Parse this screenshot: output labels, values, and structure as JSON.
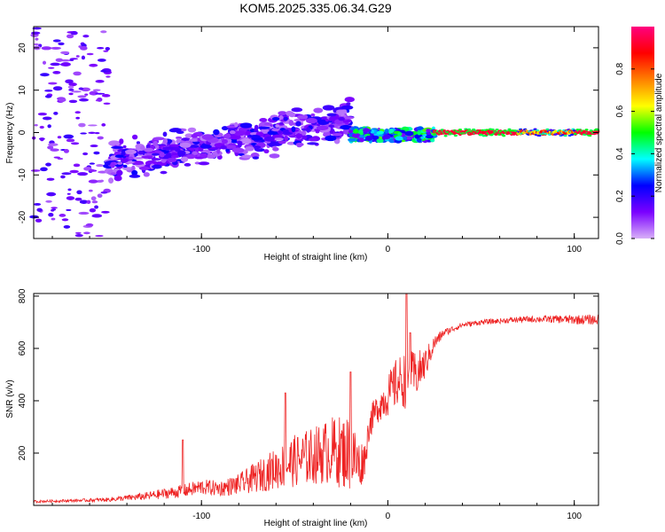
{
  "title": "KOM5.2025.335.06.34.G29",
  "colors": {
    "snr_line": "#ee2222",
    "axis": "#000000",
    "background": "#ffffff"
  },
  "chart_data": [
    {
      "type": "heatmap",
      "name": "spectrogram",
      "xlabel": "Height of straight line (km)",
      "ylabel": "Frequency (Hz)",
      "xlim": [
        -190,
        113
      ],
      "ylim": [
        -25,
        25
      ],
      "xticks": [
        -100,
        0,
        100
      ],
      "yticks": [
        -20,
        -10,
        0,
        10,
        20
      ],
      "colorbar": {
        "label": "Normalized spectral amplitude",
        "range": [
          0,
          1
        ],
        "ticks": [
          0.0,
          0.2,
          0.4,
          0.6,
          0.8
        ],
        "colormap": [
          "#d8b0f8",
          "#7a00ff",
          "#0000ff",
          "#00ffff",
          "#00ff00",
          "#ffff00",
          "#ff8000",
          "#ff0000",
          "#ff0080"
        ]
      },
      "features": [
        {
          "description": "scattered low-amplitude noise",
          "x_range": [
            -190,
            -150
          ],
          "freq_range": [
            -25,
            25
          ],
          "amplitude": 0.15
        },
        {
          "description": "rising diffuse band",
          "x_range": [
            -150,
            -20
          ],
          "freq_from": -7,
          "freq_to": 3,
          "amplitude": 0.25
        },
        {
          "description": "converging signal",
          "x_range": [
            -20,
            25
          ],
          "freq_range": [
            -2,
            1
          ],
          "amplitude": 0.5
        },
        {
          "description": "strong tone at 0 Hz",
          "x_range": [
            25,
            113
          ],
          "freq": 0,
          "amplitude": 0.95
        }
      ]
    },
    {
      "type": "line",
      "name": "snr",
      "xlabel": "Height of straight line (km)",
      "ylabel": "SNR (v/v)",
      "xlim": [
        -190,
        113
      ],
      "ylim": [
        0,
        810
      ],
      "xticks": [
        -100,
        0,
        100
      ],
      "yticks": [
        200,
        400,
        600,
        800
      ],
      "series": [
        {
          "name": "SNR",
          "envelope_x": [
            -190,
            -170,
            -150,
            -130,
            -110,
            -100,
            -90,
            -80,
            -70,
            -60,
            -50,
            -40,
            -30,
            -20,
            -15,
            -12,
            -10,
            -5,
            0,
            5,
            10,
            15,
            20,
            25,
            30,
            40,
            50,
            60,
            70,
            80,
            90,
            100,
            113
          ],
          "envelope_mean": [
            15,
            18,
            22,
            35,
            55,
            70,
            65,
            80,
            110,
            140,
            170,
            190,
            210,
            200,
            150,
            190,
            310,
            380,
            420,
            470,
            480,
            500,
            540,
            620,
            660,
            690,
            700,
            705,
            710,
            712,
            712,
            710,
            710
          ],
          "envelope_spread": [
            5,
            5,
            8,
            15,
            25,
            30,
            30,
            40,
            60,
            80,
            100,
            110,
            130,
            150,
            100,
            60,
            60,
            60,
            80,
            100,
            110,
            90,
            60,
            30,
            15,
            10,
            10,
            10,
            12,
            12,
            15,
            18,
            20
          ],
          "spike_x": [
            -110,
            10,
            12,
            7,
            -55,
            -20
          ],
          "spike_y": [
            250,
            810,
            660,
            500,
            430,
            510
          ]
        }
      ]
    }
  ]
}
